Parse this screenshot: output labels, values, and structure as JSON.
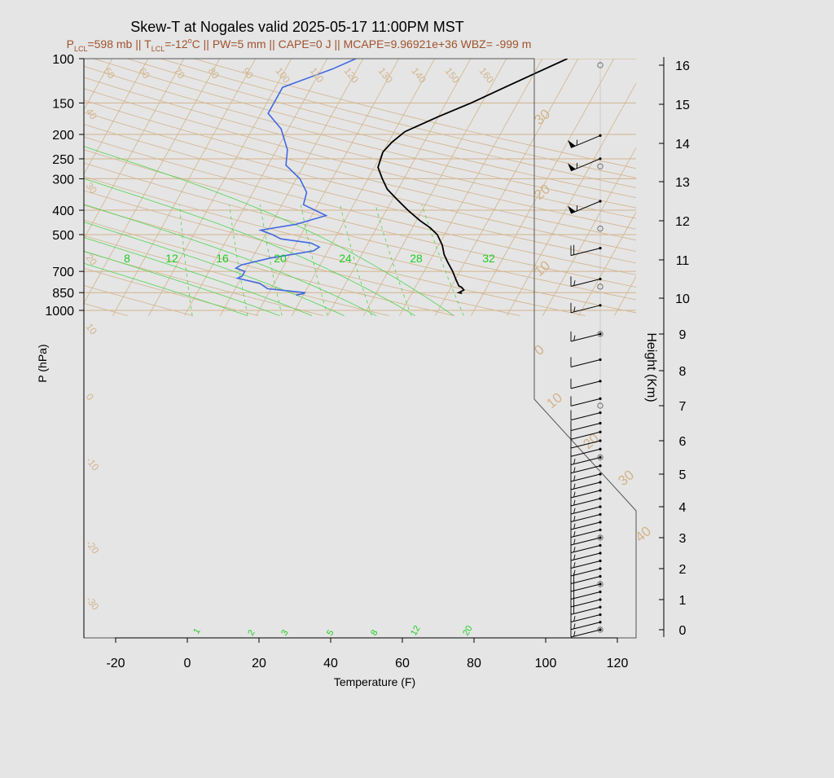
{
  "chart_data": {
    "type": "line",
    "title": "Skew-T at Nogales valid 2025-05-17 11:00PM MST",
    "subtitle": {
      "p_sym": "P",
      "p_sub": "LCL",
      "p_val": "=598 mb || ",
      "t_sym": "T",
      "t_sub": "LCL",
      "t_val": "=-12",
      "deg": "o",
      "rest": "C || PW=5 mm || CAPE=0 J || MCAPE=9.96921e+36 WBZ= -999 m"
    },
    "xlabel": "Temperature (F)",
    "ylabel": "P (hPa)",
    "y2label": "Height (Km)",
    "x_ticks": [
      "-20",
      "0",
      "20",
      "40",
      "60",
      "80",
      "100",
      "120"
    ],
    "x_tick_values": [
      -20,
      0,
      20,
      40,
      60,
      80,
      100,
      120
    ],
    "y_ticks": [
      "100",
      "150",
      "200",
      "250",
      "300",
      "400",
      "500",
      "700",
      "850",
      "1000"
    ],
    "y_tick_values": [
      100,
      150,
      200,
      250,
      300,
      400,
      500,
      700,
      850,
      1000
    ],
    "height_ticks": [
      "16",
      "15",
      "14",
      "13",
      "12",
      "11",
      "10",
      "9",
      "8",
      "7",
      "6",
      "5",
      "4",
      "3",
      "2",
      "1",
      "0"
    ],
    "height_tick_values": [
      16,
      15,
      14,
      13,
      12,
      11,
      10,
      9,
      8,
      7,
      6,
      5,
      4,
      3,
      2,
      1,
      0
    ],
    "xlim": [
      -28,
      125
    ],
    "plim": [
      1030,
      100
    ],
    "isotherm_labels": [
      "-30",
      "-20",
      "-10",
      "0",
      "10",
      "20",
      "30",
      "40",
      "50",
      "60",
      "70",
      "80",
      "90",
      "100",
      "110",
      "120",
      "130",
      "140",
      "150",
      "160"
    ],
    "isotherm_values": [
      -30,
      -20,
      -10,
      0,
      10,
      20,
      30,
      40,
      50,
      60,
      70,
      80,
      90,
      100,
      110,
      120,
      130,
      140,
      150,
      160
    ],
    "adiabat_labels": [
      "30",
      "20",
      "10",
      "0",
      "10",
      "20",
      "30",
      "40"
    ],
    "adiabat_label_values": [
      -30,
      -20,
      -10,
      0,
      10,
      20,
      30,
      40
    ],
    "theta_e_labels": [
      "8",
      "12",
      "16",
      "20",
      "24",
      "28",
      "32"
    ],
    "theta_e_values": [
      8,
      12,
      16,
      20,
      24,
      28,
      32
    ],
    "mixing_ratio_labels": [
      "1",
      "2",
      "3",
      "5",
      "8",
      "12",
      "20"
    ],
    "mixing_ratio_values": [
      1,
      2,
      3,
      5,
      8,
      12,
      20
    ],
    "series": [
      {
        "name": "Temperature",
        "color": "#000000",
        "points": [
          [
            855,
            74
          ],
          [
            850,
            73
          ],
          [
            830,
            74
          ],
          [
            810,
            73
          ],
          [
            800,
            72
          ],
          [
            750,
            70
          ],
          [
            700,
            68
          ],
          [
            640,
            65
          ],
          [
            600,
            63
          ],
          [
            550,
            61
          ],
          [
            500,
            58
          ],
          [
            470,
            55
          ],
          [
            440,
            51
          ],
          [
            400,
            46
          ],
          [
            360,
            41
          ],
          [
            330,
            37
          ],
          [
            300,
            34
          ],
          [
            270,
            31
          ],
          [
            235,
            30
          ],
          [
            215,
            31
          ],
          [
            195,
            33
          ],
          [
            170,
            40
          ],
          [
            150,
            47
          ],
          [
            130,
            54
          ],
          [
            115,
            60
          ],
          [
            100,
            67
          ]
        ]
      },
      {
        "name": "Dewpoint",
        "color": "#4169e1",
        "points": [
          [
            870,
            28
          ],
          [
            855,
            30
          ],
          [
            850,
            30
          ],
          [
            820,
            19
          ],
          [
            780,
            16
          ],
          [
            745,
            9
          ],
          [
            730,
            10
          ],
          [
            700,
            10
          ],
          [
            680,
            7
          ],
          [
            660,
            8
          ],
          [
            620,
            15
          ],
          [
            580,
            26
          ],
          [
            560,
            27
          ],
          [
            540,
            24
          ],
          [
            520,
            15
          ],
          [
            500,
            12
          ],
          [
            480,
            8
          ],
          [
            455,
            17
          ],
          [
            420,
            24
          ],
          [
            380,
            16
          ],
          [
            340,
            15
          ],
          [
            300,
            11
          ],
          [
            265,
            5
          ],
          [
            230,
            3
          ],
          [
            190,
            -2
          ],
          [
            165,
            -8
          ],
          [
            130,
            -8
          ],
          [
            110,
            3
          ],
          [
            100,
            8
          ]
        ]
      }
    ],
    "wind_barbs_kt": [
      [
        0.0,
        15
      ],
      [
        0.25,
        15
      ],
      [
        0.5,
        15
      ],
      [
        0.75,
        20
      ],
      [
        1.0,
        20
      ],
      [
        1.25,
        20
      ],
      [
        1.5,
        20
      ],
      [
        1.75,
        20
      ],
      [
        2.0,
        15
      ],
      [
        2.25,
        15
      ],
      [
        2.5,
        15
      ],
      [
        2.75,
        15
      ],
      [
        3.0,
        15
      ],
      [
        3.25,
        15
      ],
      [
        3.5,
        15
      ],
      [
        3.75,
        15
      ],
      [
        4.0,
        15
      ],
      [
        4.25,
        15
      ],
      [
        4.5,
        15
      ],
      [
        4.75,
        15
      ],
      [
        5.0,
        15
      ],
      [
        5.25,
        15
      ],
      [
        5.5,
        15
      ],
      [
        5.75,
        10
      ],
      [
        6.0,
        10
      ],
      [
        6.25,
        10
      ],
      [
        6.5,
        10
      ],
      [
        6.8,
        10
      ],
      [
        7.2,
        10
      ],
      [
        7.7,
        10
      ],
      [
        8.3,
        10
      ],
      [
        9.0,
        15
      ],
      [
        9.8,
        15
      ],
      [
        10.5,
        15
      ],
      [
        11.3,
        20
      ],
      [
        12.5,
        55
      ],
      [
        13.6,
        55
      ],
      [
        14.2,
        55
      ]
    ],
    "grid": true
  }
}
